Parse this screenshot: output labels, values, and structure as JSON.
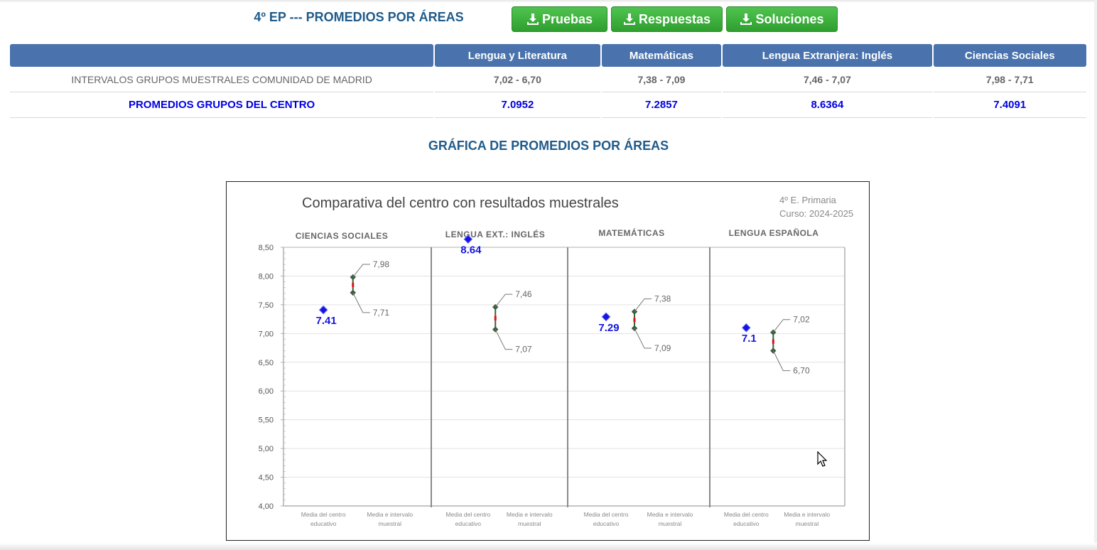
{
  "header": {
    "title": "4º EP --- PROMEDIOS POR ÁREAS",
    "buttons": [
      {
        "label": "Pruebas",
        "icon": "download-icon"
      },
      {
        "label": "Respuestas",
        "icon": "download-icon"
      },
      {
        "label": "Soluciones",
        "icon": "download-icon"
      }
    ],
    "accent_color": "#1f5b8a",
    "button_color": "#3aae3a"
  },
  "table": {
    "columns": [
      "",
      "Lengua y Literatura",
      "Matemáticas",
      "Lengua Extranjera: Inglés",
      "Ciencias Sociales"
    ],
    "rows": [
      {
        "label": "INTERVALOS GRUPOS MUESTRALES COMUNIDAD DE MADRID",
        "values": [
          "7,02 - 6,70",
          "7,38 - 7,09",
          "7,46 - 7,07",
          "7,98 - 7,71"
        ]
      },
      {
        "label": "PROMEDIOS GRUPOS DEL CENTRO",
        "values": [
          "7.0952",
          "7.2857",
          "8.6364",
          "7.4091"
        ]
      }
    ],
    "header_color": "#4a73ad",
    "highlight_color": "#0000e0"
  },
  "section_title": "GRÁFICA DE PROMEDIOS POR ÁREAS",
  "chart_data": {
    "type": "scatter",
    "title": "Comparativa del centro con resultados muestrales",
    "subtitle_lines": [
      "4º E. Primaria",
      "Curso: 2024-2025"
    ],
    "ylim": [
      4.0,
      8.5
    ],
    "y_ticks": [
      "4,00",
      "4,50",
      "5,00",
      "5,50",
      "6,00",
      "6,50",
      "7,00",
      "7,50",
      "8,00",
      "8,50"
    ],
    "x_category_labels": [
      [
        "Media del centro",
        "educativo"
      ],
      [
        "Media e intervalo",
        "muestral"
      ]
    ],
    "grid": true,
    "panels": [
      {
        "name": "CIENCIAS SOCIALES",
        "center_mean": 7.41,
        "center_label": "7.41",
        "interval_high": 7.98,
        "interval_low": 7.71,
        "high_label": "7,98",
        "low_label": "7,71"
      },
      {
        "name": "LENGUA EXT.: INGLÉS",
        "center_mean": 8.64,
        "center_label": "8.64",
        "interval_high": 7.46,
        "interval_low": 7.07,
        "high_label": "7,46",
        "low_label": "7,07"
      },
      {
        "name": "MATEMÁTICAS",
        "center_mean": 7.29,
        "center_label": "7.29",
        "interval_high": 7.38,
        "interval_low": 7.09,
        "high_label": "7,38",
        "low_label": "7,09"
      },
      {
        "name": "LENGUA ESPAÑOLA",
        "center_mean": 7.1,
        "center_label": "7.1",
        "interval_high": 7.02,
        "interval_low": 6.7,
        "high_label": "7,02",
        "low_label": "6,70"
      }
    ],
    "colors": {
      "center_point": "#1515e0",
      "interval_line": "#3d5e3d",
      "interval_mid": "#e01010",
      "grid": "#e2e2e2",
      "axis": "#b0b0b0"
    }
  }
}
